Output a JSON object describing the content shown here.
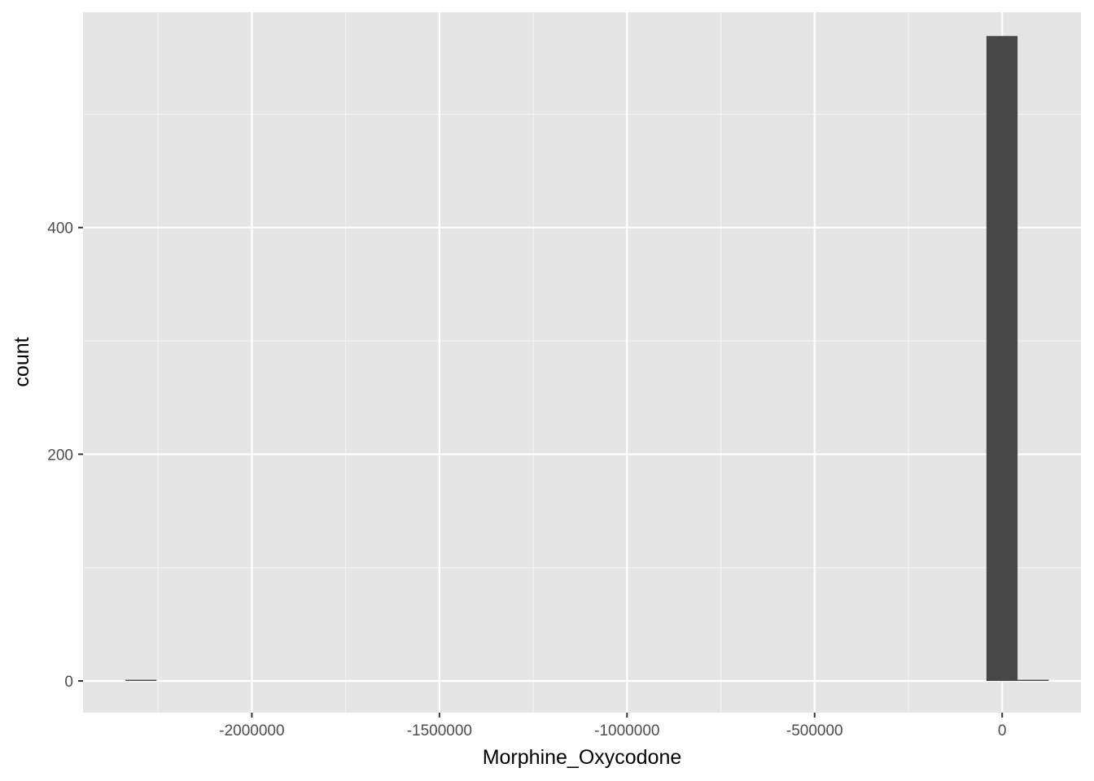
{
  "chart_data": {
    "type": "bar",
    "subtype": "histogram",
    "xlabel": "Morphine_Oxycodone",
    "ylabel": "count",
    "xlim": [
      -2450000,
      210000
    ],
    "ylim": [
      -28,
      590
    ],
    "x_ticks": [
      -2000000,
      -1500000,
      -1000000,
      -500000,
      0
    ],
    "x_tick_labels": [
      "-2000000",
      "-1500000",
      "-1000000",
      "-500000",
      "0"
    ],
    "x_minor_ticks": [
      -2250000,
      -1750000,
      -1250000,
      -750000,
      -250000
    ],
    "y_ticks": [
      0,
      200,
      400
    ],
    "y_tick_labels": [
      "0",
      "200",
      "400"
    ],
    "y_minor_ticks": [
      100,
      300,
      500
    ],
    "bins": [
      {
        "x_start": -2337000,
        "x_end": -2254000,
        "count": 1
      },
      {
        "x_start": -42000,
        "x_end": 41000,
        "count": 569
      },
      {
        "x_start": 41000,
        "x_end": 124000,
        "count": 1
      }
    ],
    "grid": true,
    "legend": "none",
    "colors": {
      "panel_background": "#e5e5e5",
      "grid_major": "#ffffff",
      "grid_minor": "#f2f2f2",
      "bar_fill": "#474747",
      "tick_text": "#4d4d4d",
      "axis_title": "#000000"
    }
  }
}
